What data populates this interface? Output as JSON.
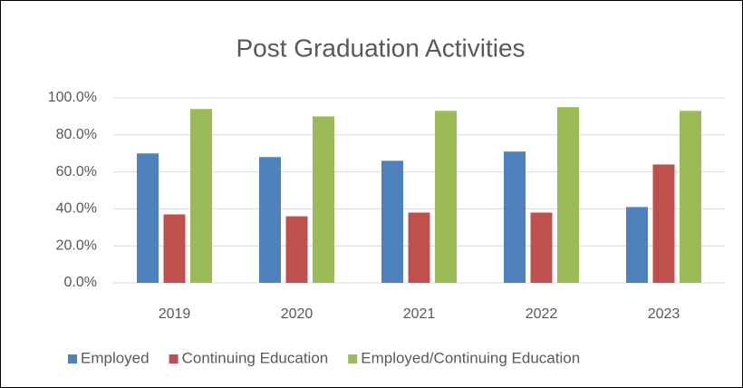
{
  "chart_data": {
    "type": "bar",
    "title": "Post Graduation Activities",
    "categories": [
      "2019",
      "2020",
      "2021",
      "2022",
      "2023"
    ],
    "series": [
      {
        "name": "Employed",
        "color": "#4f81bd",
        "values": [
          70,
          68,
          66,
          71,
          41
        ]
      },
      {
        "name": "Continuing Education",
        "color": "#c0504d",
        "values": [
          37,
          36,
          38,
          38,
          64
        ]
      },
      {
        "name": "Employed/Continuing Education",
        "color": "#9bbb59",
        "values": [
          94,
          90,
          93,
          95,
          93
        ]
      }
    ],
    "ylim": [
      0,
      100
    ],
    "yticks": [
      {
        "value": 0,
        "label": "0.0%"
      },
      {
        "value": 20,
        "label": "20.0%"
      },
      {
        "value": 40,
        "label": "40.0%"
      },
      {
        "value": 60,
        "label": "60.0%"
      },
      {
        "value": 80,
        "label": "80.0%"
      },
      {
        "value": 100,
        "label": "100.0%"
      }
    ],
    "grid": true,
    "legend": "bottom"
  }
}
